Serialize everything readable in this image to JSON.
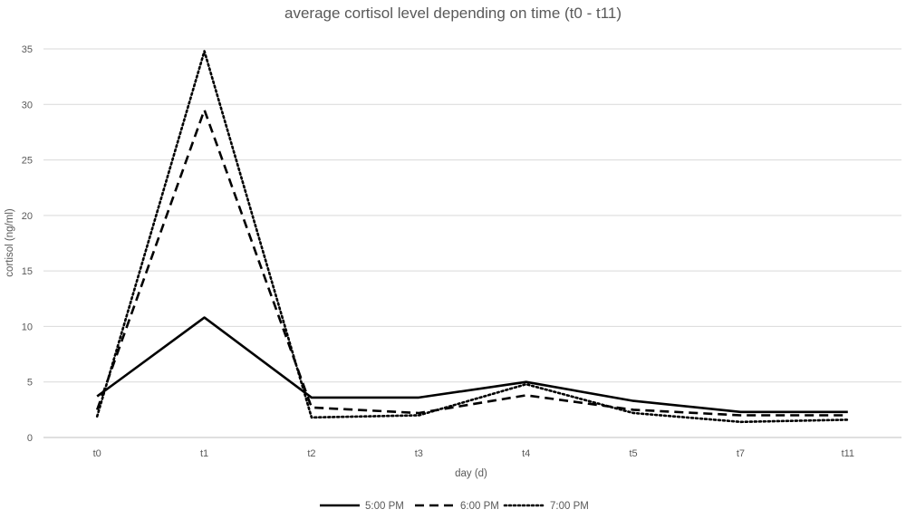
{
  "chart_data": {
    "type": "line",
    "title": "average cortisol level depending on time (t0 - t11)",
    "xlabel": "day (d)",
    "ylabel": "cortisol (ng/ml)",
    "categories": [
      "t0",
      "t1",
      "t2",
      "t3",
      "t4",
      "t5",
      "t7",
      "t11"
    ],
    "ylim": [
      0,
      35
    ],
    "yticks": [
      0,
      5,
      10,
      15,
      20,
      25,
      30,
      35
    ],
    "grid": true,
    "legend_position": "bottom",
    "series": [
      {
        "name": "5:00 PM",
        "line_style": "solid",
        "color": "#000000",
        "values": [
          3.7,
          10.8,
          3.6,
          3.6,
          5.0,
          3.3,
          2.3,
          2.3
        ]
      },
      {
        "name": "6:00 PM",
        "line_style": "dashed",
        "color": "#000000",
        "values": [
          2.5,
          29.5,
          2.7,
          2.2,
          3.8,
          2.5,
          2.0,
          2.0
        ]
      },
      {
        "name": "7:00 PM",
        "line_style": "dotted",
        "color": "#000000",
        "values": [
          1.9,
          34.8,
          1.8,
          2.0,
          4.8,
          2.2,
          1.4,
          1.6
        ]
      }
    ]
  }
}
